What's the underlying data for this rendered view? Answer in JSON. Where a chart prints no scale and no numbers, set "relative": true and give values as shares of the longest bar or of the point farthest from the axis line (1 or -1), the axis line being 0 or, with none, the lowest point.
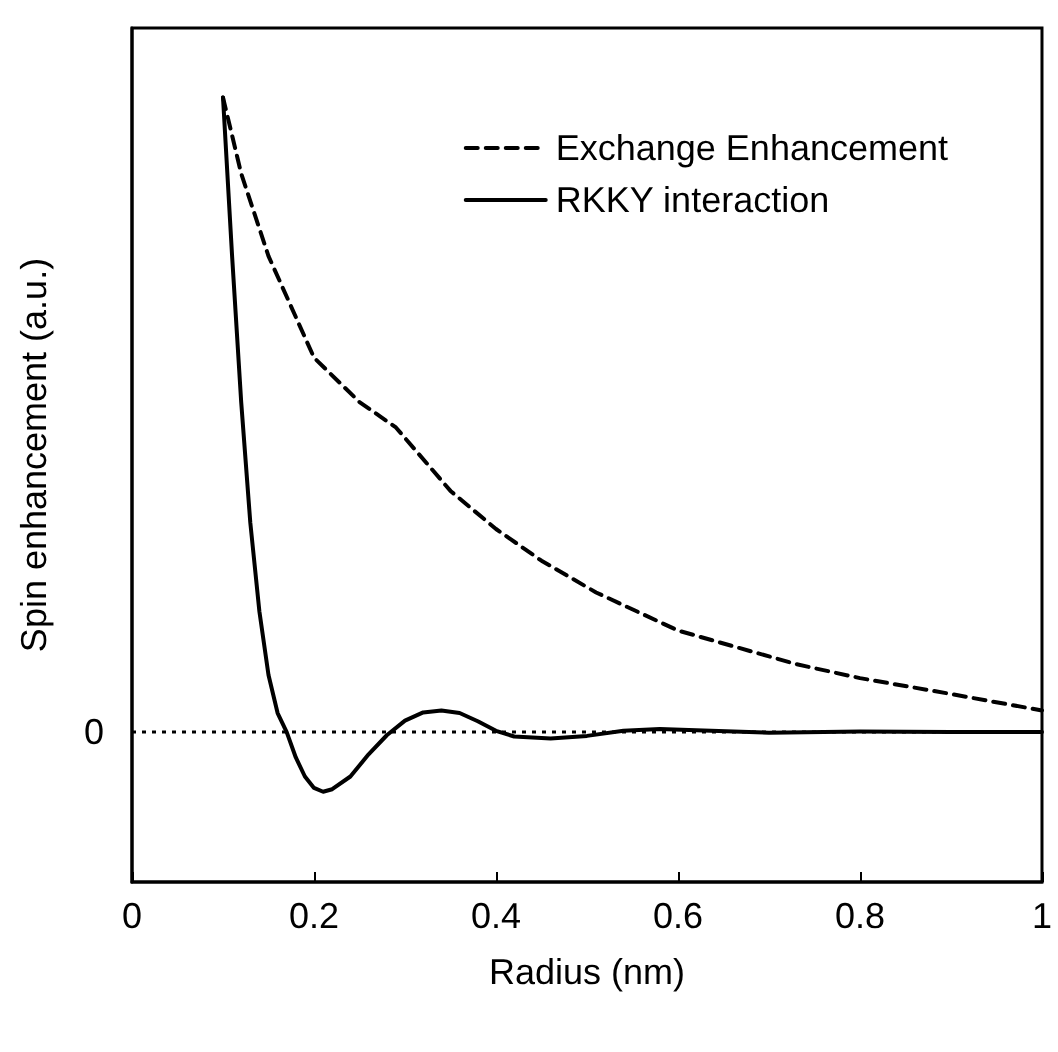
{
  "chart_data": {
    "type": "line",
    "xlabel": "Radius (nm)",
    "ylabel": "Spin enhancement (a.u.)",
    "relative": true,
    "xlim": [
      0,
      1
    ],
    "xticks": [
      0,
      0.2,
      0.4,
      0.6,
      0.8,
      1
    ],
    "legend": "top right",
    "marker": "none",
    "grid": false,
    "ref_lines": [
      {
        "axis": "y",
        "value": 0,
        "label": "0",
        "line_style": "dotted",
        "color": "#000000"
      }
    ],
    "series": [
      {
        "name": "Exchange Enhancement",
        "color": "#000000",
        "line_style": "dashed",
        "x": [
          0.1,
          0.12,
          0.15,
          0.2,
          0.25,
          0.29,
          0.35,
          0.4,
          0.45,
          0.51,
          0.6,
          0.73,
          0.8,
          0.9,
          1.0
        ],
        "values": [
          1,
          0.88,
          0.75,
          0.59,
          0.52,
          0.48,
          0.38,
          0.32,
          0.27,
          0.22,
          0.16,
          0.107,
          0.085,
          0.06,
          0.034
        ]
      },
      {
        "name": "RKKY interaction",
        "color": "#000000",
        "line_style": "solid",
        "x": [
          0.1,
          0.11,
          0.12,
          0.13,
          0.14,
          0.15,
          0.16,
          0.17,
          0.18,
          0.19,
          0.2,
          0.21,
          0.22,
          0.24,
          0.26,
          0.28,
          0.3,
          0.32,
          0.34,
          0.36,
          0.38,
          0.4,
          0.42,
          0.46,
          0.5,
          0.54,
          0.58,
          0.62,
          0.7,
          0.8,
          0.9,
          1.0
        ],
        "values": [
          1,
          0.75,
          0.52,
          0.33,
          0.19,
          0.09,
          0.03,
          0,
          -0.04,
          -0.07,
          -0.088,
          -0.094,
          -0.09,
          -0.07,
          -0.035,
          -0.005,
          0.018,
          0.031,
          0.034,
          0.03,
          0.017,
          0.002,
          -0.007,
          -0.01,
          -0.006,
          0.002,
          0.005,
          0.003,
          -0.001,
          0.001,
          0,
          0
        ]
      }
    ]
  }
}
